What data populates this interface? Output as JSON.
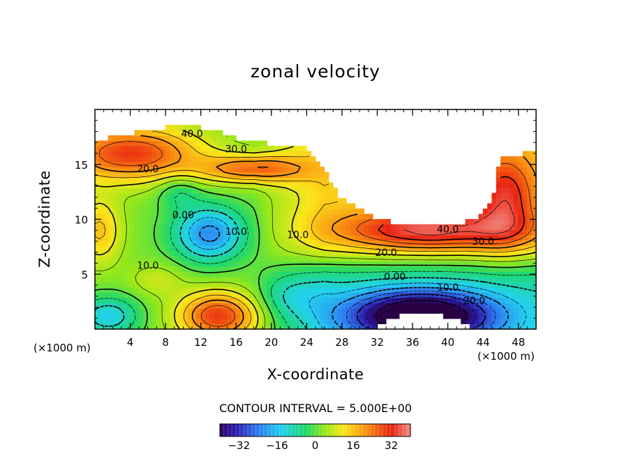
{
  "chart_data": {
    "type": "heatmap",
    "title": "zonal velocity",
    "xlabel": "X-coordinate",
    "ylabel": "Z-coordinate",
    "x_unit_label": "(×1000 m)",
    "xlim": [
      0,
      50
    ],
    "ylim": [
      0,
      20
    ],
    "x_ticks": [
      4,
      8,
      12,
      16,
      20,
      24,
      28,
      32,
      36,
      40,
      44,
      48
    ],
    "y_ticks": [
      5,
      10,
      15
    ],
    "contour_interval_text": "CONTOUR INTERVAL = 5.000E+00",
    "contour_interval": 5.0,
    "colorbar": {
      "range": [
        -40,
        40
      ],
      "tick_values": [
        -32,
        -16,
        0,
        16,
        32
      ],
      "tick_labels": [
        "−32",
        "−16",
        "0",
        "16",
        "32"
      ]
    },
    "contour_labels": [
      {
        "text": "40.0",
        "x": 11.0,
        "z": 17.8
      },
      {
        "text": "30.0",
        "x": 16.0,
        "z": 16.4
      },
      {
        "text": "20.0",
        "x": 6.0,
        "z": 14.6
      },
      {
        "text": "0.00",
        "x": 10.0,
        "z": 10.4
      },
      {
        "text": "10.0",
        "x": 16.0,
        "z": 8.9
      },
      {
        "text": "10.0",
        "x": 23.0,
        "z": 8.6
      },
      {
        "text": "10.0",
        "x": 6.0,
        "z": 5.8
      },
      {
        "text": "40.0",
        "x": 40.0,
        "z": 9.1
      },
      {
        "text": "30.0",
        "x": 44.0,
        "z": 8.0
      },
      {
        "text": "20.0",
        "x": 33.0,
        "z": 7.0
      },
      {
        "text": "0.00",
        "x": 34.0,
        "z": 4.8
      },
      {
        "text": "10.0",
        "x": 40.0,
        "z": 3.8
      },
      {
        "text": "20.0",
        "x": 43.0,
        "z": 2.6
      }
    ],
    "features": [
      {
        "kind": "max",
        "x": 5.0,
        "z": 15.8,
        "approx_value": 35
      },
      {
        "kind": "max",
        "x": 14.0,
        "z": 1.5,
        "approx_value": 35
      },
      {
        "kind": "max",
        "x": 20.0,
        "z": 14.5,
        "approx_value": 30
      },
      {
        "kind": "max",
        "x": 44.0,
        "z": 11.0,
        "approx_value": 38
      },
      {
        "kind": "min",
        "x": 13.0,
        "z": 8.8,
        "approx_value": -18
      },
      {
        "kind": "min",
        "x": 36.5,
        "z": 1.2,
        "approx_value": -40
      },
      {
        "kind": "min",
        "x": 1.0,
        "z": 1.5,
        "approx_value": -15
      }
    ]
  }
}
